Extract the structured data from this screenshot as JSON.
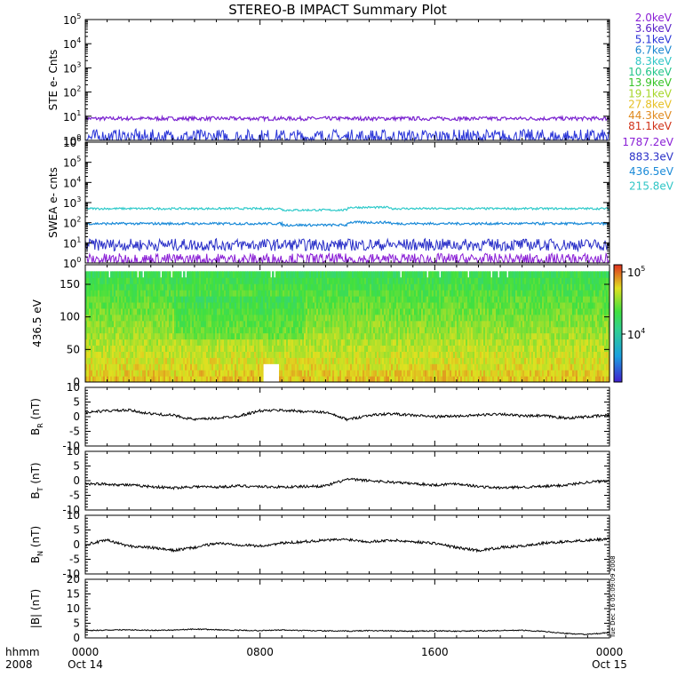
{
  "title": "STEREO-B IMPACT Summary Plot",
  "x_axis": {
    "row_label_1": "hhmm",
    "row_label_2": "2008",
    "ticks": [
      {
        "value": 0,
        "label": "0000",
        "date": "Oct 14"
      },
      {
        "value": 8,
        "label": "0800",
        "date": ""
      },
      {
        "value": 16,
        "label": "1600",
        "date": ""
      },
      {
        "value": 24,
        "label": "0000",
        "date": "Oct 15"
      }
    ],
    "range_hours": [
      0,
      24
    ]
  },
  "timestamp": "Tue Dec 16 05:09:09 2008",
  "colors": {
    "colorbar_top": "#e0301f",
    "colorbar_mid": "#30e040",
    "colorbar_bottom": "#4020d0"
  },
  "chart_data": [
    {
      "id": "ste",
      "type": "line",
      "ylabel": "STE e- Cnts",
      "scale": "log",
      "ylim": [
        1,
        100000
      ],
      "ytick_exponents": [
        "0",
        "1",
        "2",
        "3",
        "4",
        "5"
      ],
      "legend": [
        {
          "label": "2.0keV",
          "color": "#8a1fd6"
        },
        {
          "label": "3.6keV",
          "color": "#5a22c8"
        },
        {
          "label": "5.1keV",
          "color": "#2a35d8"
        },
        {
          "label": "6.7keV",
          "color": "#1a86d0"
        },
        {
          "label": "8.3keV",
          "color": "#2fc6c6"
        },
        {
          "label": "10.6keV",
          "color": "#22c58a"
        },
        {
          "label": "13.9keV",
          "color": "#36c427"
        },
        {
          "label": "19.1keV",
          "color": "#a7d62a"
        },
        {
          "label": "27.8keV",
          "color": "#e6c025"
        },
        {
          "label": "44.3keV",
          "color": "#e08a20"
        },
        {
          "label": "81.1keV",
          "color": "#d03218"
        }
      ],
      "series": [
        {
          "color": "#7a22d0",
          "level": 8,
          "noise": 0.08
        },
        {
          "color": "#2a35d8",
          "level": 1.3,
          "noise": 0.35
        }
      ]
    },
    {
      "id": "swea",
      "type": "line",
      "ylabel": "SWEA e- cnts",
      "scale": "log",
      "ylim": [
        1,
        1000000
      ],
      "ytick_exponents": [
        "0",
        "1",
        "2",
        "3",
        "4",
        "5",
        "6"
      ],
      "legend": [
        {
          "label": "1787.2eV",
          "color": "#8a1fd6"
        },
        {
          "label": "883.3eV",
          "color": "#2a30c8"
        },
        {
          "label": "436.5eV",
          "color": "#1a8ad8"
        },
        {
          "label": "215.8eV",
          "color": "#2fc6c6"
        }
      ],
      "series": [
        {
          "color": "#2fcaca",
          "level": 500,
          "noise": 0.05
        },
        {
          "color": "#1a8ad8",
          "level": 90,
          "noise": 0.06
        },
        {
          "color": "#2a30c8",
          "level": 8,
          "noise": 0.3
        },
        {
          "color": "#8a1fd6",
          "level": 1.5,
          "noise": 0.3
        }
      ]
    },
    {
      "id": "pad",
      "type": "heatmap",
      "ylabel": "436.5 eV",
      "ylim": [
        0,
        180
      ],
      "yticks": [
        "0",
        "50",
        "100",
        "150"
      ],
      "colorbar": {
        "scale": "log",
        "ticks": [
          "10^4",
          "10^5"
        ],
        "exponents": [
          "4",
          "5"
        ]
      }
    },
    {
      "id": "br",
      "type": "line",
      "ylabel_base": "B",
      "ylabel_sub": "R",
      "ylabel_unit": "(nT)",
      "ylim": [
        -10,
        10
      ],
      "yticks": [
        "10",
        "5",
        "0",
        "-5",
        "-10"
      ],
      "x": [
        0,
        1,
        2,
        3,
        4,
        5,
        6,
        7,
        8,
        9,
        10,
        11,
        12,
        13,
        14,
        15,
        16,
        17,
        18,
        19,
        20,
        21,
        22,
        23,
        24
      ],
      "values": [
        1.5,
        2.0,
        2.2,
        1.0,
        0.5,
        -1.0,
        -0.5,
        0.2,
        2.0,
        2.2,
        1.8,
        1.5,
        -1.0,
        0.5,
        1.0,
        0.5,
        0.0,
        0.2,
        0.5,
        1.0,
        0.2,
        0.3,
        -0.5,
        0.0,
        0.5
      ]
    },
    {
      "id": "bt",
      "type": "line",
      "ylabel_base": "B",
      "ylabel_sub": "T",
      "ylabel_unit": "(nT)",
      "ylim": [
        -10,
        10
      ],
      "yticks": [
        "10",
        "5",
        "0",
        "-5",
        "-10"
      ],
      "x": [
        0,
        1,
        2,
        3,
        4,
        5,
        6,
        7,
        8,
        9,
        10,
        11,
        12,
        13,
        14,
        15,
        16,
        17,
        18,
        19,
        20,
        21,
        22,
        23,
        24
      ],
      "values": [
        -1.0,
        -1.2,
        -1.5,
        -2.0,
        -2.5,
        -2.0,
        -2.2,
        -1.8,
        -2.0,
        -2.2,
        -2.0,
        -1.8,
        0.5,
        0.0,
        -0.5,
        -1.0,
        -1.5,
        -1.0,
        -2.0,
        -2.5,
        -2.2,
        -2.0,
        -1.5,
        -0.5,
        0.0
      ]
    },
    {
      "id": "bn",
      "type": "line",
      "ylabel_base": "B",
      "ylabel_sub": "N",
      "ylabel_unit": "(nT)",
      "ylim": [
        -10,
        10
      ],
      "yticks": [
        "10",
        "5",
        "0",
        "-5",
        "-10"
      ],
      "x": [
        0,
        1,
        2,
        3,
        4,
        5,
        6,
        7,
        8,
        9,
        10,
        11,
        12,
        13,
        14,
        15,
        16,
        17,
        18,
        19,
        20,
        21,
        22,
        23,
        24
      ],
      "values": [
        0.0,
        1.5,
        -0.5,
        -1.0,
        -2.0,
        -1.0,
        0.5,
        0.0,
        -0.5,
        0.5,
        1.0,
        1.5,
        1.8,
        1.0,
        1.5,
        1.0,
        0.5,
        -1.0,
        -2.0,
        -1.0,
        -0.5,
        0.5,
        1.0,
        1.5,
        2.0
      ]
    },
    {
      "id": "bmag",
      "type": "line",
      "ylabel": "|B| (nT)",
      "ylim": [
        0,
        20
      ],
      "yticks": [
        "20",
        "15",
        "10",
        "5",
        "0"
      ],
      "x": [
        0,
        1,
        2,
        3,
        4,
        5,
        6,
        7,
        8,
        9,
        10,
        11,
        12,
        13,
        14,
        15,
        16,
        17,
        18,
        19,
        20,
        21,
        22,
        23,
        24
      ],
      "values": [
        2.5,
        2.7,
        2.8,
        2.6,
        2.7,
        3.0,
        2.8,
        2.6,
        2.5,
        2.7,
        2.5,
        2.4,
        2.3,
        2.5,
        2.4,
        2.3,
        2.4,
        2.3,
        2.4,
        2.5,
        2.6,
        2.2,
        1.5,
        1.2,
        1.8
      ]
    }
  ]
}
